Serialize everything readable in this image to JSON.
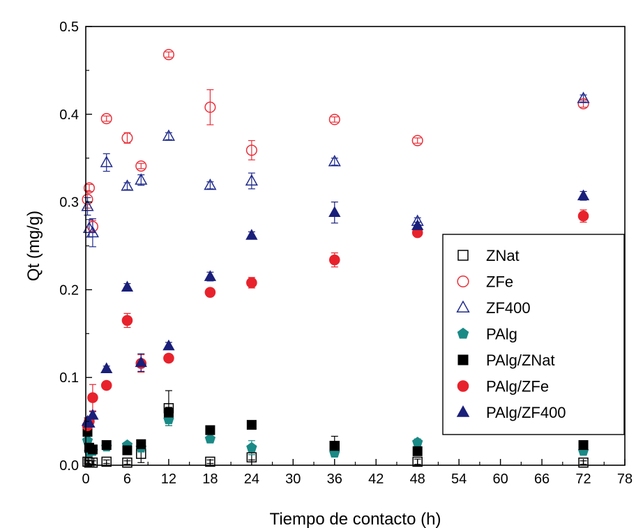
{
  "chart_data": {
    "type": "scatter",
    "xlabel": "Tiempo de contacto (h)",
    "ylabel": "Qt (mg/g)",
    "xlim": [
      0,
      78
    ],
    "ylim": [
      0,
      0.5
    ],
    "xticks": [
      0,
      6,
      12,
      18,
      24,
      30,
      36,
      42,
      48,
      54,
      60,
      66,
      72,
      78
    ],
    "yticks": [
      0.0,
      0.1,
      0.2,
      0.3,
      0.4,
      0.5
    ],
    "x_tick_labels": [
      "0",
      "6",
      "12",
      "18",
      "24",
      "30",
      "36",
      "42",
      "48",
      "54",
      "60",
      "66",
      "72",
      "78"
    ],
    "y_tick_labels": [
      "0.0",
      "0.1",
      "0.2",
      "0.3",
      "0.4",
      "0.5"
    ],
    "grid": false,
    "legend_position": "center-right",
    "series": [
      {
        "name": "ZNat",
        "marker": "square",
        "filled": false,
        "color": "#000000",
        "points": [
          {
            "x": 0.25,
            "y": 0.004,
            "err": 0.002
          },
          {
            "x": 0.5,
            "y": 0.003,
            "err": 0.002
          },
          {
            "x": 1,
            "y": 0.003,
            "err": 0.002
          },
          {
            "x": 3,
            "y": 0.004,
            "err": 0.002
          },
          {
            "x": 6,
            "y": 0.003,
            "err": 0.002
          },
          {
            "x": 8,
            "y": 0.013,
            "err": 0.01
          },
          {
            "x": 12,
            "y": 0.065,
            "err": 0.02
          },
          {
            "x": 18,
            "y": 0.004,
            "err": 0.002
          },
          {
            "x": 24,
            "y": 0.009,
            "err": 0.003
          },
          {
            "x": 36,
            "y": 0.022,
            "err": 0.011
          },
          {
            "x": 48,
            "y": 0.004,
            "err": 0.003
          },
          {
            "x": 72,
            "y": 0.003,
            "err": 0.002
          }
        ]
      },
      {
        "name": "ZFe",
        "marker": "circle",
        "filled": false,
        "color": "#e8303a",
        "points": [
          {
            "x": 0.25,
            "y": 0.303,
            "err": 0.01
          },
          {
            "x": 0.5,
            "y": 0.316,
            "err": 0.004
          },
          {
            "x": 1,
            "y": 0.272,
            "err": 0.007
          },
          {
            "x": 3,
            "y": 0.395,
            "err": 0.003
          },
          {
            "x": 6,
            "y": 0.373,
            "err": 0.006
          },
          {
            "x": 8,
            "y": 0.341,
            "err": 0.003
          },
          {
            "x": 12,
            "y": 0.468,
            "err": 0.003
          },
          {
            "x": 18,
            "y": 0.408,
            "err": 0.02
          },
          {
            "x": 24,
            "y": 0.359,
            "err": 0.011
          },
          {
            "x": 36,
            "y": 0.394,
            "err": 0.003
          },
          {
            "x": 48,
            "y": 0.37,
            "err": 0.003
          },
          {
            "x": 72,
            "y": 0.412,
            "err": 0.004
          }
        ]
      },
      {
        "name": "ZF400",
        "marker": "triangle",
        "filled": false,
        "color": "#1f2a8c",
        "points": [
          {
            "x": 0.25,
            "y": 0.295,
            "err": 0.01
          },
          {
            "x": 0.5,
            "y": 0.27,
            "err": 0.01
          },
          {
            "x": 1,
            "y": 0.265,
            "err": 0.016
          },
          {
            "x": 3,
            "y": 0.345,
            "err": 0.01
          },
          {
            "x": 6,
            "y": 0.318,
            "err": 0.004
          },
          {
            "x": 8,
            "y": 0.325,
            "err": 0.006
          },
          {
            "x": 12,
            "y": 0.375,
            "err": 0.004
          },
          {
            "x": 18,
            "y": 0.319,
            "err": 0.004
          },
          {
            "x": 24,
            "y": 0.324,
            "err": 0.009
          },
          {
            "x": 36,
            "y": 0.346,
            "err": 0.004
          },
          {
            "x": 48,
            "y": 0.278,
            "err": 0.004
          },
          {
            "x": 72,
            "y": 0.418,
            "err": 0.004
          }
        ]
      },
      {
        "name": "PAlg",
        "marker": "pentagon",
        "filled": true,
        "color": "#1a8a86",
        "points": [
          {
            "x": 0.25,
            "y": 0.028,
            "err": 0.003
          },
          {
            "x": 0.5,
            "y": 0.015,
            "err": 0.003
          },
          {
            "x": 1,
            "y": 0.016,
            "err": 0.003
          },
          {
            "x": 3,
            "y": 0.021,
            "err": 0.004
          },
          {
            "x": 6,
            "y": 0.023,
            "err": 0.003
          },
          {
            "x": 8,
            "y": 0.02,
            "err": 0.005
          },
          {
            "x": 12,
            "y": 0.052,
            "err": 0.007
          },
          {
            "x": 18,
            "y": 0.03,
            "err": 0.003
          },
          {
            "x": 24,
            "y": 0.02,
            "err": 0.008
          },
          {
            "x": 36,
            "y": 0.014,
            "err": 0.003
          },
          {
            "x": 48,
            "y": 0.026,
            "err": 0.004
          },
          {
            "x": 72,
            "y": 0.016,
            "err": 0.003
          }
        ]
      },
      {
        "name": "PAlg/ZNat",
        "marker": "square",
        "filled": true,
        "color": "#000000",
        "points": [
          {
            "x": 0.25,
            "y": 0.038,
            "err": 0.004
          },
          {
            "x": 0.5,
            "y": 0.02,
            "err": 0.003
          },
          {
            "x": 1,
            "y": 0.018,
            "err": 0.003
          },
          {
            "x": 3,
            "y": 0.023,
            "err": 0.004
          },
          {
            "x": 6,
            "y": 0.017,
            "err": 0.003
          },
          {
            "x": 8,
            "y": 0.024,
            "err": 0.004
          },
          {
            "x": 12,
            "y": 0.06,
            "err": 0.006
          },
          {
            "x": 18,
            "y": 0.04,
            "err": 0.003
          },
          {
            "x": 24,
            "y": 0.046,
            "err": 0.004
          },
          {
            "x": 36,
            "y": 0.022,
            "err": 0.003
          },
          {
            "x": 48,
            "y": 0.016,
            "err": 0.003
          },
          {
            "x": 72,
            "y": 0.023,
            "err": 0.003
          }
        ]
      },
      {
        "name": "PAlg/ZFe",
        "marker": "circle",
        "filled": true,
        "color": "#e8222c",
        "points": [
          {
            "x": 0.25,
            "y": 0.045,
            "err": 0.006
          },
          {
            "x": 0.5,
            "y": 0.05,
            "err": 0.005
          },
          {
            "x": 1,
            "y": 0.077,
            "err": 0.015
          },
          {
            "x": 3,
            "y": 0.091,
            "err": 0.004
          },
          {
            "x": 6,
            "y": 0.165,
            "err": 0.008
          },
          {
            "x": 8,
            "y": 0.116,
            "err": 0.01
          },
          {
            "x": 12,
            "y": 0.122,
            "err": 0.004
          },
          {
            "x": 18,
            "y": 0.197,
            "err": 0.004
          },
          {
            "x": 24,
            "y": 0.208,
            "err": 0.006
          },
          {
            "x": 36,
            "y": 0.234,
            "err": 0.008
          },
          {
            "x": 48,
            "y": 0.265,
            "err": 0.004
          },
          {
            "x": 72,
            "y": 0.284,
            "err": 0.007
          }
        ]
      },
      {
        "name": "PAlg/ZF400",
        "marker": "triangle",
        "filled": true,
        "color": "#1a1f7a",
        "points": [
          {
            "x": 0.25,
            "y": 0.05,
            "err": 0.004
          },
          {
            "x": 0.5,
            "y": 0.048,
            "err": 0.004
          },
          {
            "x": 1,
            "y": 0.057,
            "err": 0.004
          },
          {
            "x": 3,
            "y": 0.11,
            "err": 0.003
          },
          {
            "x": 6,
            "y": 0.203,
            "err": 0.004
          },
          {
            "x": 8,
            "y": 0.117,
            "err": 0.01
          },
          {
            "x": 12,
            "y": 0.136,
            "err": 0.004
          },
          {
            "x": 18,
            "y": 0.215,
            "err": 0.005
          },
          {
            "x": 24,
            "y": 0.262,
            "err": 0.004
          },
          {
            "x": 36,
            "y": 0.288,
            "err": 0.012
          },
          {
            "x": 48,
            "y": 0.273,
            "err": 0.004
          },
          {
            "x": 72,
            "y": 0.307,
            "err": 0.005
          }
        ]
      }
    ]
  }
}
